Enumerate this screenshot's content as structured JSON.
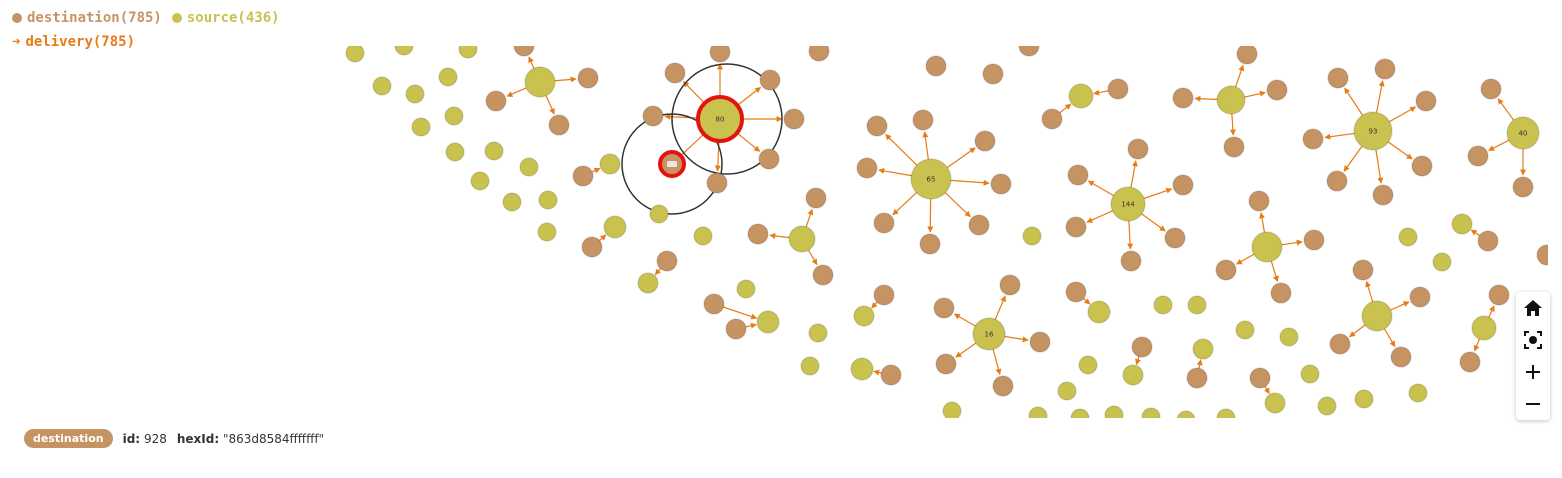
{
  "legend": {
    "destination_label": "destination(785)",
    "source_label": "source(436)",
    "relationship_label": "delivery(785)"
  },
  "colors": {
    "destination": "#c69463",
    "source": "#c9c24f",
    "edge": "#e77b16",
    "selection": "#e3140f"
  },
  "graph": {
    "hub_labels": [
      "80",
      "65",
      "144",
      "93",
      "40",
      "16"
    ]
  },
  "controls": {
    "home_icon": "home-icon",
    "fit_icon": "fit-screen-icon",
    "zoom_in_icon": "plus-icon",
    "zoom_out_icon": "minus-icon"
  },
  "info": {
    "badge": "destination",
    "id_key": "id:",
    "id_value": "928",
    "hexid_key": "hexId:",
    "hexid_value": "\"863d8584fffffff\""
  }
}
